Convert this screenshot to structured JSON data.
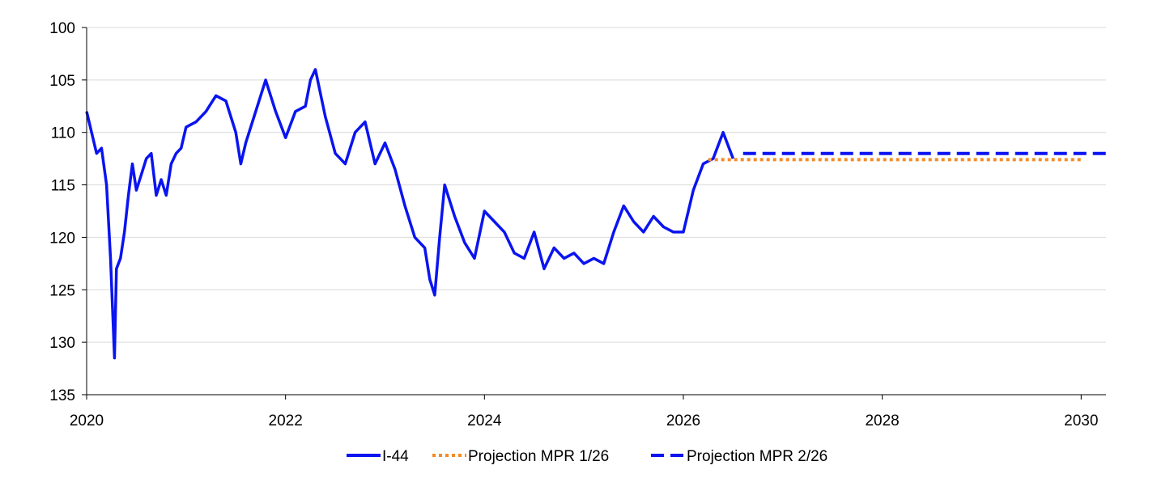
{
  "chart_data": {
    "type": "line",
    "title": "",
    "xlabel": "",
    "ylabel": "",
    "xlim": [
      2020,
      2030.25
    ],
    "ylim": [
      135,
      100
    ],
    "y_inverted": true,
    "x_ticks": [
      2020,
      2022,
      2024,
      2026,
      2028,
      2030
    ],
    "x_tick_labels": [
      "2020",
      "2022",
      "2024",
      "2026",
      "2028",
      "2030"
    ],
    "y_ticks": [
      100,
      105,
      110,
      115,
      120,
      125,
      130,
      135
    ],
    "y_tick_labels": [
      "100",
      "105",
      "110",
      "115",
      "120",
      "125",
      "130",
      "135"
    ],
    "grid": "horizontal",
    "legend_position": "bottom",
    "series": [
      {
        "name": "I-44",
        "color": "#0a14f0",
        "style": "solid",
        "x": [
          2020.0,
          2020.05,
          2020.1,
          2020.15,
          2020.2,
          2020.24,
          2020.28,
          2020.3,
          2020.34,
          2020.38,
          2020.42,
          2020.46,
          2020.5,
          2020.55,
          2020.6,
          2020.65,
          2020.7,
          2020.75,
          2020.8,
          2020.85,
          2020.9,
          2020.95,
          2021.0,
          2021.1,
          2021.2,
          2021.3,
          2021.4,
          2021.5,
          2021.55,
          2021.6,
          2021.7,
          2021.8,
          2021.9,
          2022.0,
          2022.1,
          2022.2,
          2022.25,
          2022.3,
          2022.4,
          2022.5,
          2022.6,
          2022.7,
          2022.8,
          2022.9,
          2023.0,
          2023.1,
          2023.2,
          2023.3,
          2023.4,
          2023.45,
          2023.5,
          2023.55,
          2023.6,
          2023.7,
          2023.8,
          2023.9,
          2024.0,
          2024.1,
          2024.2,
          2024.3,
          2024.4,
          2024.5,
          2024.6,
          2024.7,
          2024.8,
          2024.9,
          2025.0,
          2025.1,
          2025.2,
          2025.3,
          2025.4,
          2025.5,
          2025.6,
          2025.7,
          2025.8,
          2025.9,
          2026.0,
          2026.1,
          2026.2,
          2026.3,
          2026.4,
          2026.5
        ],
        "y": [
          108.0,
          110.0,
          112.0,
          111.5,
          115.0,
          122.0,
          131.5,
          123.0,
          122.0,
          119.5,
          116.0,
          113.0,
          115.5,
          114.0,
          112.5,
          112.0,
          116.0,
          114.5,
          116.0,
          113.0,
          112.0,
          111.5,
          109.5,
          109.0,
          108.0,
          106.5,
          107.0,
          110.0,
          113.0,
          111.0,
          108.0,
          105.0,
          108.0,
          110.5,
          108.0,
          107.5,
          105.0,
          104.0,
          108.5,
          112.0,
          113.0,
          110.0,
          109.0,
          113.0,
          111.0,
          113.5,
          117.0,
          120.0,
          121.0,
          124.0,
          125.5,
          120.0,
          115.0,
          118.0,
          120.5,
          122.0,
          117.5,
          118.5,
          119.5,
          121.5,
          122.0,
          119.5,
          123.0,
          121.0,
          122.0,
          121.5,
          122.5,
          122.0,
          122.5,
          119.5,
          117.0,
          118.5,
          119.5,
          118.0,
          119.0,
          119.5,
          119.5,
          115.5,
          113.0,
          112.5,
          110.0,
          112.5
        ]
      },
      {
        "name": "Projection MPR 1/26",
        "color": "#f28c28",
        "style": "dotted",
        "x": [
          2026.25,
          2030.0
        ],
        "y": [
          112.6,
          112.6
        ]
      },
      {
        "name": "Projection MPR 2/26",
        "color": "#0a14f0",
        "style": "dashed",
        "x": [
          2026.6,
          2030.25
        ],
        "y": [
          112.0,
          112.0
        ]
      }
    ]
  }
}
